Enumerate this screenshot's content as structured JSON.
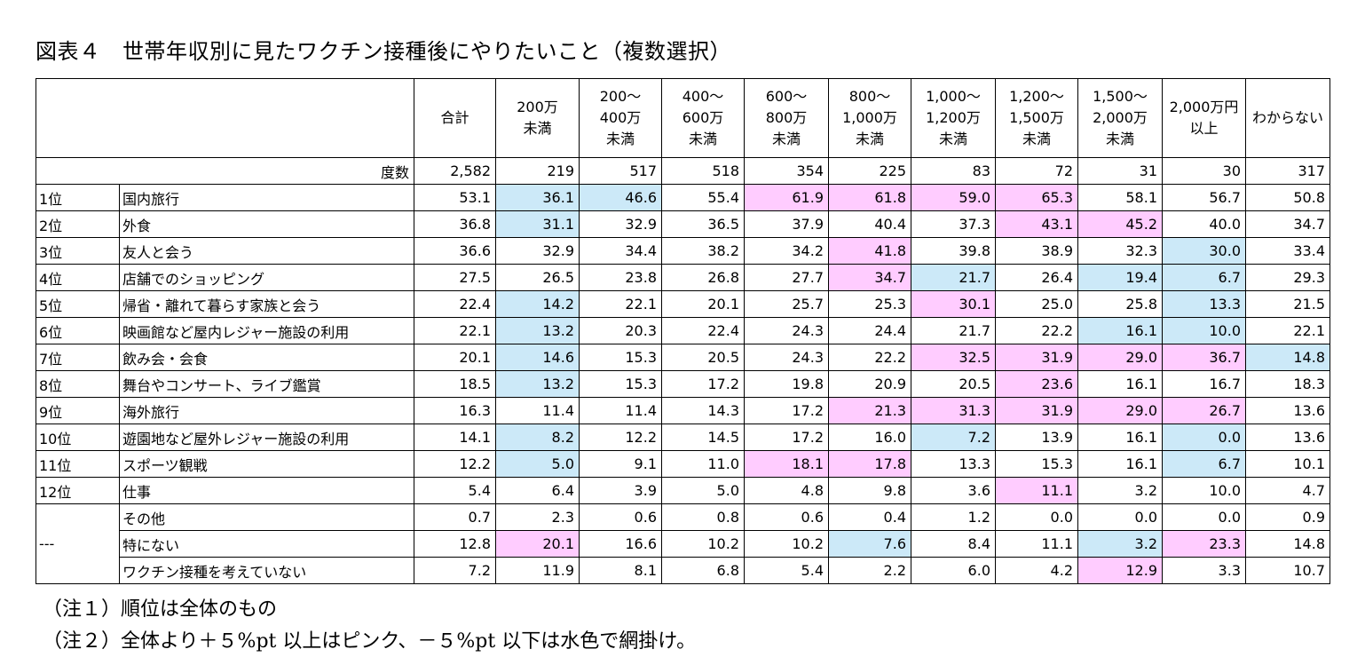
{
  "title": "図表４　世帯年収別に見たワクチン接種後にやりたいこと（複数選択）",
  "colors": {
    "pink": "#ffccff",
    "blue": "#cce9f8"
  },
  "columns": [
    "合計",
    "200万\n未満",
    "200～\n400万\n未満",
    "400～\n600万\n未満",
    "600～\n800万\n未満",
    "800～\n1,000万\n未満",
    "1,000～\n1,200万\n未満",
    "1,200～\n1,500万\n未満",
    "1,500～\n2,000万\n未満",
    "2,000万円\n以上",
    "わからない"
  ],
  "count_row": {
    "label": "度数",
    "values": [
      "2,582",
      "219",
      "517",
      "518",
      "354",
      "225",
      "83",
      "72",
      "31",
      "30",
      "317"
    ]
  },
  "rows": [
    {
      "rank": "1位",
      "item": "国内旅行",
      "values": [
        "53.1",
        "36.1",
        "46.6",
        "55.4",
        "61.9",
        "61.8",
        "59.0",
        "65.3",
        "58.1",
        "56.7",
        "50.8"
      ],
      "shade": [
        "",
        "b",
        "b",
        "",
        "p",
        "p",
        "p",
        "p",
        "",
        "",
        ""
      ]
    },
    {
      "rank": "2位",
      "item": "外食",
      "values": [
        "36.8",
        "31.1",
        "32.9",
        "36.5",
        "37.9",
        "40.4",
        "37.3",
        "43.1",
        "45.2",
        "40.0",
        "34.7"
      ],
      "shade": [
        "",
        "b",
        "",
        "",
        "",
        "",
        "",
        "p",
        "p",
        "",
        ""
      ]
    },
    {
      "rank": "3位",
      "item": "友人と会う",
      "values": [
        "36.6",
        "32.9",
        "34.4",
        "38.2",
        "34.2",
        "41.8",
        "39.8",
        "38.9",
        "32.3",
        "30.0",
        "33.4"
      ],
      "shade": [
        "",
        "",
        "",
        "",
        "",
        "p",
        "",
        "",
        "",
        "b",
        ""
      ]
    },
    {
      "rank": "4位",
      "item": "店舗でのショッピング",
      "values": [
        "27.5",
        "26.5",
        "23.8",
        "26.8",
        "27.7",
        "34.7",
        "21.7",
        "26.4",
        "19.4",
        "6.7",
        "29.3"
      ],
      "shade": [
        "",
        "",
        "",
        "",
        "",
        "p",
        "b",
        "",
        "b",
        "b",
        ""
      ]
    },
    {
      "rank": "5位",
      "item": "帰省・離れて暮らす家族と会う",
      "values": [
        "22.4",
        "14.2",
        "22.1",
        "20.1",
        "25.7",
        "25.3",
        "30.1",
        "25.0",
        "25.8",
        "13.3",
        "21.5"
      ],
      "shade": [
        "",
        "b",
        "",
        "",
        "",
        "",
        "p",
        "",
        "",
        "b",
        ""
      ]
    },
    {
      "rank": "6位",
      "item": "映画館など屋内レジャー施設の利用",
      "values": [
        "22.1",
        "13.2",
        "20.3",
        "22.4",
        "24.3",
        "24.4",
        "21.7",
        "22.2",
        "16.1",
        "10.0",
        "22.1"
      ],
      "shade": [
        "",
        "b",
        "",
        "",
        "",
        "",
        "",
        "",
        "b",
        "b",
        ""
      ]
    },
    {
      "rank": "7位",
      "item": "飲み会・会食",
      "values": [
        "20.1",
        "14.6",
        "15.3",
        "20.5",
        "24.3",
        "22.2",
        "32.5",
        "31.9",
        "29.0",
        "36.7",
        "14.8"
      ],
      "shade": [
        "",
        "b",
        "",
        "",
        "",
        "",
        "p",
        "p",
        "p",
        "p",
        "b"
      ]
    },
    {
      "rank": "8位",
      "item": "舞台やコンサート、ライブ鑑賞",
      "values": [
        "18.5",
        "13.2",
        "15.3",
        "17.2",
        "19.8",
        "20.9",
        "20.5",
        "23.6",
        "16.1",
        "16.7",
        "18.3"
      ],
      "shade": [
        "",
        "b",
        "",
        "",
        "",
        "",
        "",
        "p",
        "",
        "",
        ""
      ]
    },
    {
      "rank": "9位",
      "item": "海外旅行",
      "values": [
        "16.3",
        "11.4",
        "11.4",
        "14.3",
        "17.2",
        "21.3",
        "31.3",
        "31.9",
        "29.0",
        "26.7",
        "13.6"
      ],
      "shade": [
        "",
        "",
        "",
        "",
        "",
        "p",
        "p",
        "p",
        "p",
        "p",
        ""
      ]
    },
    {
      "rank": "10位",
      "item": "遊園地など屋外レジャー施設の利用",
      "values": [
        "14.1",
        "8.2",
        "12.2",
        "14.5",
        "17.2",
        "16.0",
        "7.2",
        "13.9",
        "16.1",
        "0.0",
        "13.6"
      ],
      "shade": [
        "",
        "b",
        "",
        "",
        "",
        "",
        "b",
        "",
        "",
        "b",
        ""
      ]
    },
    {
      "rank": "11位",
      "item": "スポーツ観戦",
      "values": [
        "12.2",
        "5.0",
        "9.1",
        "11.0",
        "18.1",
        "17.8",
        "13.3",
        "15.3",
        "16.1",
        "6.7",
        "10.1"
      ],
      "shade": [
        "",
        "b",
        "",
        "",
        "p",
        "p",
        "",
        "",
        "",
        "b",
        ""
      ]
    },
    {
      "rank": "12位",
      "item": "仕事",
      "values": [
        "5.4",
        "6.4",
        "3.9",
        "5.0",
        "4.8",
        "9.8",
        "3.6",
        "11.1",
        "3.2",
        "10.0",
        "4.7"
      ],
      "shade": [
        "",
        "",
        "",
        "",
        "",
        "",
        "",
        "p",
        "",
        "",
        ""
      ]
    },
    {
      "rank": "",
      "item": "その他",
      "values": [
        "0.7",
        "2.3",
        "0.6",
        "0.8",
        "0.6",
        "0.4",
        "1.2",
        "0.0",
        "0.0",
        "0.0",
        "0.9"
      ],
      "shade": [
        "",
        "",
        "",
        "",
        "",
        "",
        "",
        "",
        "",
        "",
        ""
      ]
    },
    {
      "rank": "---",
      "item": "特にない",
      "values": [
        "12.8",
        "20.1",
        "16.6",
        "10.2",
        "10.2",
        "7.6",
        "8.4",
        "11.1",
        "3.2",
        "23.3",
        "14.8"
      ],
      "shade": [
        "",
        "p",
        "",
        "",
        "",
        "b",
        "",
        "",
        "b",
        "p",
        ""
      ]
    },
    {
      "rank": "",
      "item": "ワクチン接種を考えていない",
      "values": [
        "7.2",
        "11.9",
        "8.1",
        "6.8",
        "5.4",
        "2.2",
        "6.0",
        "4.2",
        "12.9",
        "3.3",
        "10.7"
      ],
      "shade": [
        "",
        "",
        "",
        "",
        "",
        "",
        "",
        "",
        "p",
        "",
        ""
      ]
    }
  ],
  "notes": [
    "（注１）順位は全体のもの",
    "（注２）全体より＋５%pt 以上はピンク、－５%pt 以下は水色で網掛け。"
  ]
}
